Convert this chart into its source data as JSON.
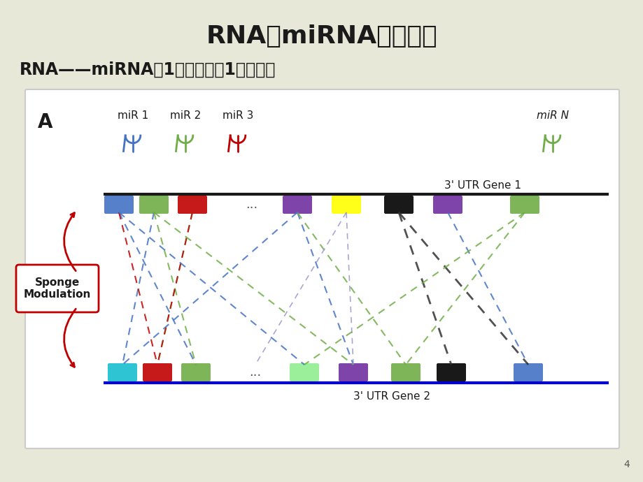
{
  "bg_color": "#e8e8d8",
  "title": "RNA和miRNA作用方式",
  "subtitle": "RNA——miRNA：1对多；多兴1；多对多",
  "title_fontsize": 26,
  "subtitle_fontsize": 17,
  "panel_bg": "#ffffff",
  "page_num": "4",
  "gene1_bar_colors": [
    "#4472c4",
    "#70ad47",
    "#c00000",
    "#4472c4",
    "#7030a0",
    "#ffff00",
    "#000000",
    "#7030a0",
    "#70ad47"
  ],
  "gene2_bar_colors": [
    "#17becf",
    "#c00000",
    "#70ad47",
    "#4472c4",
    "#90ee90",
    "#7030a0",
    "#70ad47",
    "#000000",
    "#4472c4"
  ],
  "mir_labels": [
    "miR 1",
    "miR 2",
    "miR 3",
    "miR N"
  ],
  "mir_colors": [
    "#4472c4",
    "#70ad47",
    "#c00000",
    "#70ad47"
  ],
  "gene1_label": "3' UTR Gene 1",
  "gene2_label": "3' UTR Gene 2",
  "sponge_label": "Sponge\nModulation",
  "panel_label": "A"
}
